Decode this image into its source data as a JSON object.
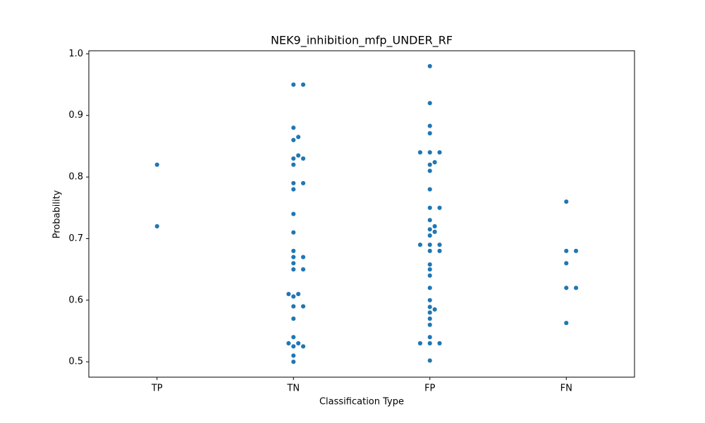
{
  "chart_data": {
    "type": "swarm",
    "title": "NEK9_inhibition_mfp_UNDER_RF",
    "x_label": "Classification Type",
    "y_label": "Probability",
    "categories": [
      "TP",
      "TN",
      "FP",
      "FN"
    ],
    "color": "#1f77b4",
    "values": [
      [
        0.82,
        0.72
      ],
      [
        0.95,
        0.95,
        0.88,
        0.865,
        0.86,
        0.835,
        0.83,
        0.83,
        0.82,
        0.79,
        0.79,
        0.78,
        0.74,
        0.71,
        0.68,
        0.67,
        0.67,
        0.66,
        0.65,
        0.65,
        0.61,
        0.61,
        0.606,
        0.59,
        0.59,
        0.57,
        0.54,
        0.53,
        0.53,
        0.525,
        0.525,
        0.51,
        0.5
      ],
      [
        0.98,
        0.92,
        0.883,
        0.871,
        0.84,
        0.84,
        0.84,
        0.824,
        0.82,
        0.81,
        0.78,
        0.75,
        0.75,
        0.73,
        0.72,
        0.715,
        0.711,
        0.705,
        0.69,
        0.69,
        0.69,
        0.68,
        0.68,
        0.658,
        0.65,
        0.64,
        0.62,
        0.6,
        0.589,
        0.585,
        0.58,
        0.57,
        0.56,
        0.54,
        0.53,
        0.53,
        0.53,
        0.502
      ],
      [
        0.76,
        0.68,
        0.68,
        0.66,
        0.62,
        0.62,
        0.563
      ]
    ],
    "ylim": [
      0.475,
      1.005
    ],
    "yticks": [
      0.5,
      0.6,
      0.7,
      0.8,
      0.9,
      {
        "value": 1,
        "label": "1.0"
      }
    ]
  }
}
